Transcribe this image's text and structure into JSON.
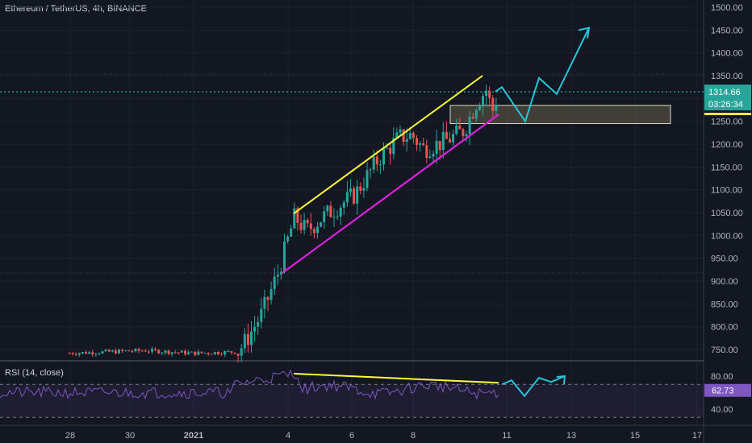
{
  "title": "Ethereum / TetherUS, 4h, BINANCE",
  "rsi_label": "RSI (14, close)",
  "colors": {
    "background": "#131722",
    "grid": "#1e2230",
    "up": "#26a69a",
    "down": "#ef5350",
    "trend_upper": "#ffff33",
    "trend_lower": "#e020e0",
    "projection": "#26c6da",
    "rsi_line": "#7e57c2",
    "price_line": "#26a69a"
  },
  "chart_data": {
    "type": "candlestick",
    "price_axis": {
      "ticks": [
        "1500.00",
        "1450.00",
        "1400.00",
        "1350.00",
        "1300.00",
        "1250.00",
        "1200.00",
        "1150.00",
        "1100.00",
        "1050.00",
        "1000.00",
        "950.00",
        "900.00",
        "850.00",
        "800.00",
        "750.00"
      ],
      "ylim": [
        725,
        1510
      ]
    },
    "last_price": "1314.66",
    "countdown": "03:26:34",
    "x_axis": {
      "ticks": [
        "28",
        "30",
        "2021",
        "4",
        "6",
        "8",
        "11",
        "13",
        "15",
        "17"
      ]
    },
    "rsi_axis": {
      "ticks": [
        "80.00",
        "40.00"
      ],
      "ylim": [
        28,
        90
      ]
    },
    "rsi_value": "62.73",
    "support_zone": [
      1245,
      1285
    ],
    "trend_upper": [
      [
        364,
        1048
      ],
      [
        598,
        1350
      ]
    ],
    "trend_lower": [
      [
        350,
        918
      ],
      [
        618,
        1265
      ]
    ],
    "projection": [
      [
        614,
        1315
      ],
      [
        622,
        1325
      ],
      [
        651,
        1250
      ],
      [
        668,
        1345
      ],
      [
        690,
        1310
      ],
      [
        730,
        1455
      ]
    ],
    "rsi_divergence": [
      [
        364,
        83
      ],
      [
        618,
        72
      ]
    ],
    "rsi_projection": [
      [
        622,
        70
      ],
      [
        634,
        75
      ],
      [
        650,
        56
      ],
      [
        668,
        78
      ],
      [
        683,
        73
      ],
      [
        700,
        80
      ]
    ]
  }
}
